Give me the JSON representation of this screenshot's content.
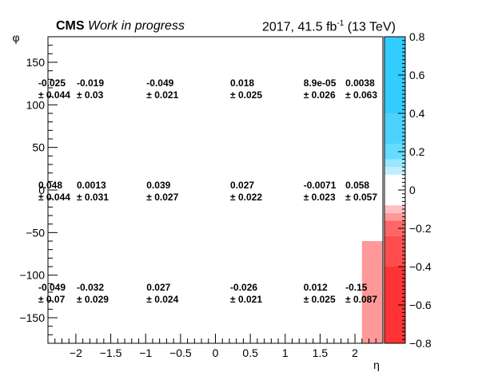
{
  "header": {
    "experiment": "CMS",
    "status": "Work in progress",
    "lumi_prefix": "2017, 41.5 fb",
    "lumi_sup": "-1",
    "lumi_suffix": " (13 TeV)"
  },
  "chart_data": {
    "type": "heatmap",
    "xlabel": "η",
    "ylabel": "φ",
    "xlim": [
      -2.4,
      2.4
    ],
    "ylim": [
      -180,
      180
    ],
    "x_ticks": [
      -2,
      -1.5,
      -1,
      -0.5,
      0,
      0.5,
      1,
      1.5,
      2
    ],
    "x_tick_labels": [
      "−2",
      "−1.5",
      "−1",
      "−0.5",
      "0",
      "0.5",
      "1",
      "1.5",
      "2"
    ],
    "y_ticks": [
      -150,
      -100,
      -50,
      0,
      50,
      100,
      150
    ],
    "y_tick_labels": [
      "−150",
      "−100",
      "−50",
      "0",
      "50",
      "100",
      "150"
    ],
    "x_edges": [
      -2.4,
      -2.1,
      -1.5,
      -0.5,
      0.5,
      1.5,
      2.1,
      2.4
    ],
    "y_edges": [
      -180,
      -60,
      60,
      180
    ],
    "filled_cells": [
      {
        "x0": 2.1,
        "x1": 2.4,
        "y0": -180,
        "y1": -60,
        "value": -0.15
      }
    ],
    "labels": [
      {
        "eta": -2.4,
        "phi": 120,
        "value": "-0.025",
        "error": "± 0.044"
      },
      {
        "eta": -1.85,
        "phi": 120,
        "value": "-0.019",
        "error": "± 0.03"
      },
      {
        "eta": -0.85,
        "phi": 120,
        "value": "-0.049",
        "error": "± 0.021"
      },
      {
        "eta": 0.35,
        "phi": 120,
        "value": "0.018",
        "error": "± 0.025"
      },
      {
        "eta": 1.4,
        "phi": 120,
        "value": "8.9e-05",
        "error": "± 0.026"
      },
      {
        "eta": 2.0,
        "phi": 120,
        "value": "0.0038",
        "error": "± 0.063"
      },
      {
        "eta": -2.4,
        "phi": 0,
        "value": "0.048",
        "error": "± 0.044"
      },
      {
        "eta": -1.85,
        "phi": 0,
        "value": "0.0013",
        "error": "± 0.031"
      },
      {
        "eta": -0.85,
        "phi": 0,
        "value": "0.039",
        "error": "± 0.027"
      },
      {
        "eta": 0.35,
        "phi": 0,
        "value": "0.027",
        "error": "± 0.022"
      },
      {
        "eta": 1.4,
        "phi": 0,
        "value": "-0.0071",
        "error": "± 0.023"
      },
      {
        "eta": 2.0,
        "phi": 0,
        "value": "0.058",
        "error": "± 0.057"
      },
      {
        "eta": -2.4,
        "phi": -120,
        "value": "-0.049",
        "error": "± 0.07"
      },
      {
        "eta": -1.85,
        "phi": -120,
        "value": "-0.032",
        "error": "± 0.029"
      },
      {
        "eta": -0.85,
        "phi": -120,
        "value": "0.027",
        "error": "± 0.024"
      },
      {
        "eta": 0.35,
        "phi": -120,
        "value": "-0.026",
        "error": "± 0.021"
      },
      {
        "eta": 1.4,
        "phi": -120,
        "value": "0.012",
        "error": "± 0.025"
      },
      {
        "eta": 2.0,
        "phi": -120,
        "value": "-0.15",
        "error": "± 0.087"
      }
    ],
    "colorbar": {
      "zlim": [
        -0.8,
        0.8
      ],
      "ticks": [
        -0.8,
        -0.6,
        -0.4,
        -0.2,
        0,
        0.2,
        0.4,
        0.6,
        0.8
      ],
      "tick_labels": [
        "−0.8",
        "−0.6",
        "−0.4",
        "−0.2",
        "0",
        "0.2",
        "0.4",
        "0.6",
        "0.8"
      ],
      "bands": [
        {
          "from": -0.8,
          "to": -0.4,
          "color": "#ff3333"
        },
        {
          "from": -0.4,
          "to": -0.24,
          "color": "#ff4d4d"
        },
        {
          "from": -0.24,
          "to": -0.16,
          "color": "#ff6666"
        },
        {
          "from": -0.16,
          "to": -0.12,
          "color": "#ff9999"
        },
        {
          "from": -0.12,
          "to": -0.08,
          "color": "#ffbfbf"
        },
        {
          "from": -0.08,
          "to": 0.08,
          "color": "#ffffff"
        },
        {
          "from": 0.08,
          "to": 0.12,
          "color": "#bfefff"
        },
        {
          "from": 0.12,
          "to": 0.16,
          "color": "#99e6ff"
        },
        {
          "from": 0.16,
          "to": 0.24,
          "color": "#66dcff"
        },
        {
          "from": 0.24,
          "to": 0.4,
          "color": "#4dd2ff"
        },
        {
          "from": 0.4,
          "to": 0.8,
          "color": "#33ccff"
        }
      ]
    }
  }
}
